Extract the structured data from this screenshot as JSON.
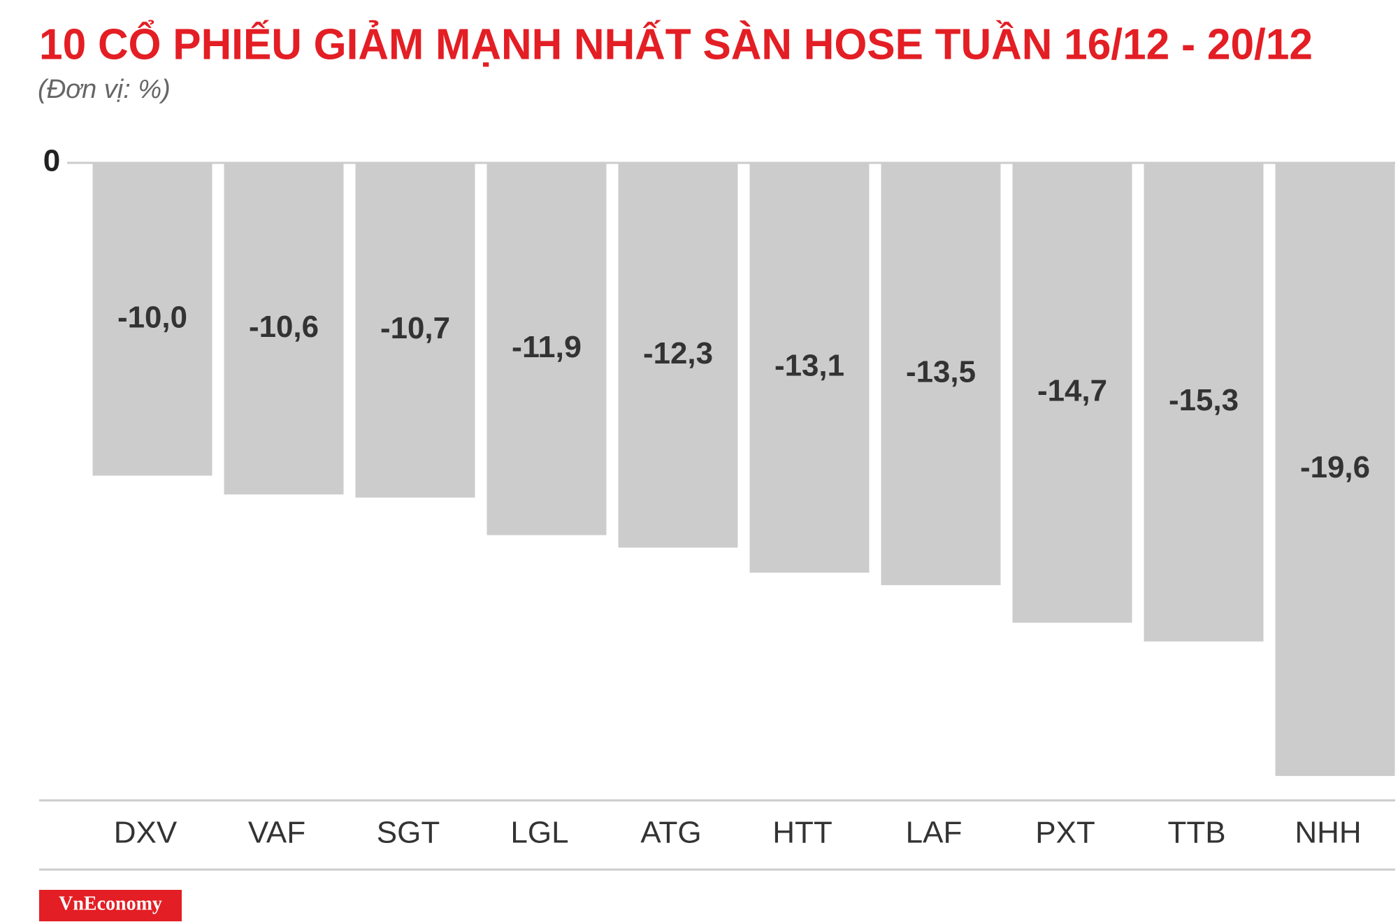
{
  "chart_data": {
    "type": "bar",
    "title": "10 CỔ PHIẾU GIẢM MẠNH NHẤT SÀN HOSE TUẦN 16/12 - 20/12",
    "subtitle": "(Đơn vị: %)",
    "categories": [
      "DXV",
      "VAF",
      "SGT",
      "LGL",
      "ATG",
      "HTT",
      "LAF",
      "PXT",
      "TTB",
      "NHH"
    ],
    "values": [
      -10.0,
      -10.6,
      -10.7,
      -11.9,
      -12.3,
      -13.1,
      -13.5,
      -14.7,
      -15.3,
      -19.6
    ],
    "value_labels": [
      "-10,0",
      "-10,6",
      "-10,7",
      "-11,9",
      "-12,3",
      "-13,1",
      "-13,5",
      "-14,7",
      "-15,3",
      "-19,6"
    ],
    "color": "#cccccc",
    "ylim": [
      -20,
      0
    ],
    "yticks": [
      0
    ]
  },
  "logo": "VnEconomy"
}
